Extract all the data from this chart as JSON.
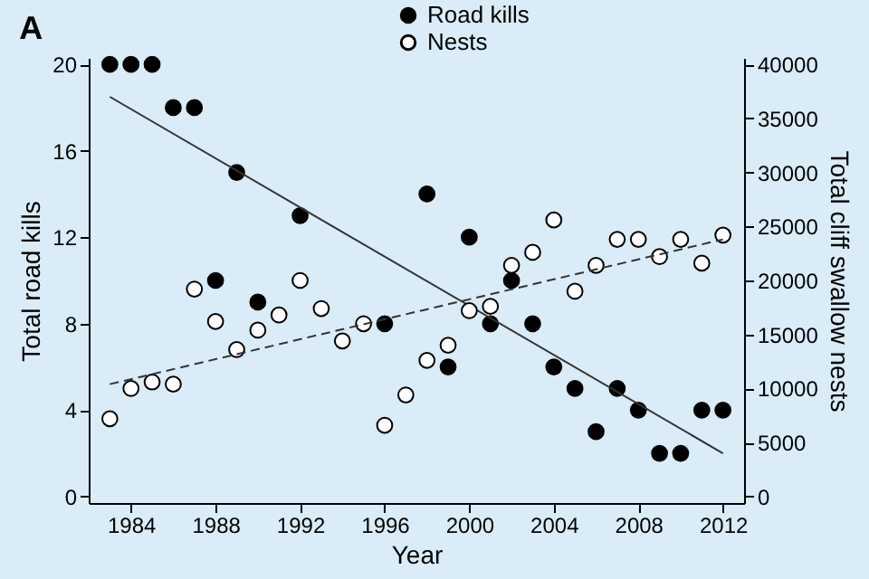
{
  "chart_data": {
    "type": "scatter",
    "title": "A",
    "xlabel": "Year",
    "ylabel": "Total road kills",
    "y2label": "Total cliff swallow nests",
    "xlim": [
      1982,
      2013
    ],
    "xticks": [
      1984,
      1988,
      1992,
      1996,
      2000,
      2004,
      2008,
      2012
    ],
    "ylim": [
      -0.3,
      20.3
    ],
    "yticks": [
      0,
      4,
      8,
      12,
      16,
      20
    ],
    "y2lim": [
      -600,
      40600
    ],
    "y2ticks": [
      0,
      5000,
      10000,
      15000,
      20000,
      25000,
      30000,
      35000,
      40000
    ],
    "legend": "top",
    "grid": false,
    "series": [
      {
        "name": "Road kills",
        "color": "#000000",
        "marker": "circle",
        "x": [
          1983,
          1984,
          1985,
          1986,
          1987,
          1988,
          1989,
          1990,
          1992,
          1996,
          1998,
          1999,
          2000,
          2001,
          2002,
          2003,
          2004,
          2005,
          2006,
          2007,
          2008,
          2009,
          2010,
          2011,
          2012
        ],
        "values": [
          20,
          20,
          20,
          18,
          18,
          10,
          15,
          9,
          13,
          8,
          14,
          6,
          12,
          8,
          10,
          8,
          6,
          5,
          3,
          5,
          4,
          2,
          2,
          4,
          4
        ]
      },
      {
        "name": "Nests",
        "color": "#ffffff",
        "marker": "circle",
        "axis": "y2",
        "x": [
          1983,
          1984,
          1985,
          1986,
          1987,
          1988,
          1989,
          1990,
          1991,
          1992,
          1993,
          1994,
          1995,
          1996,
          1997,
          1998,
          1999,
          2000,
          2001,
          2002,
          2003,
          2004,
          2005,
          2006,
          2007,
          2008,
          2009,
          2010,
          2011,
          2012
        ],
        "values": [
          7200,
          10000,
          10600,
          10400,
          19200,
          16200,
          13600,
          15400,
          16800,
          20000,
          17400,
          14400,
          16000,
          6600,
          9400,
          12600,
          14000,
          17200,
          17600,
          21400,
          22600,
          25600,
          19000,
          21400,
          23800,
          23800,
          22200,
          23800,
          21600,
          24200
        ]
      },
      {
        "type": "line",
        "color": "#333333",
        "line_style": "solid",
        "marker": "none",
        "x": [
          1983,
          2012
        ],
        "values": [
          18.5,
          2.0
        ]
      },
      {
        "type": "line",
        "color": "#333333",
        "line_style": "dashed",
        "marker": "none",
        "axis": "y2",
        "x": [
          1983,
          2012
        ],
        "values": [
          10400,
          23800
        ]
      }
    ]
  }
}
